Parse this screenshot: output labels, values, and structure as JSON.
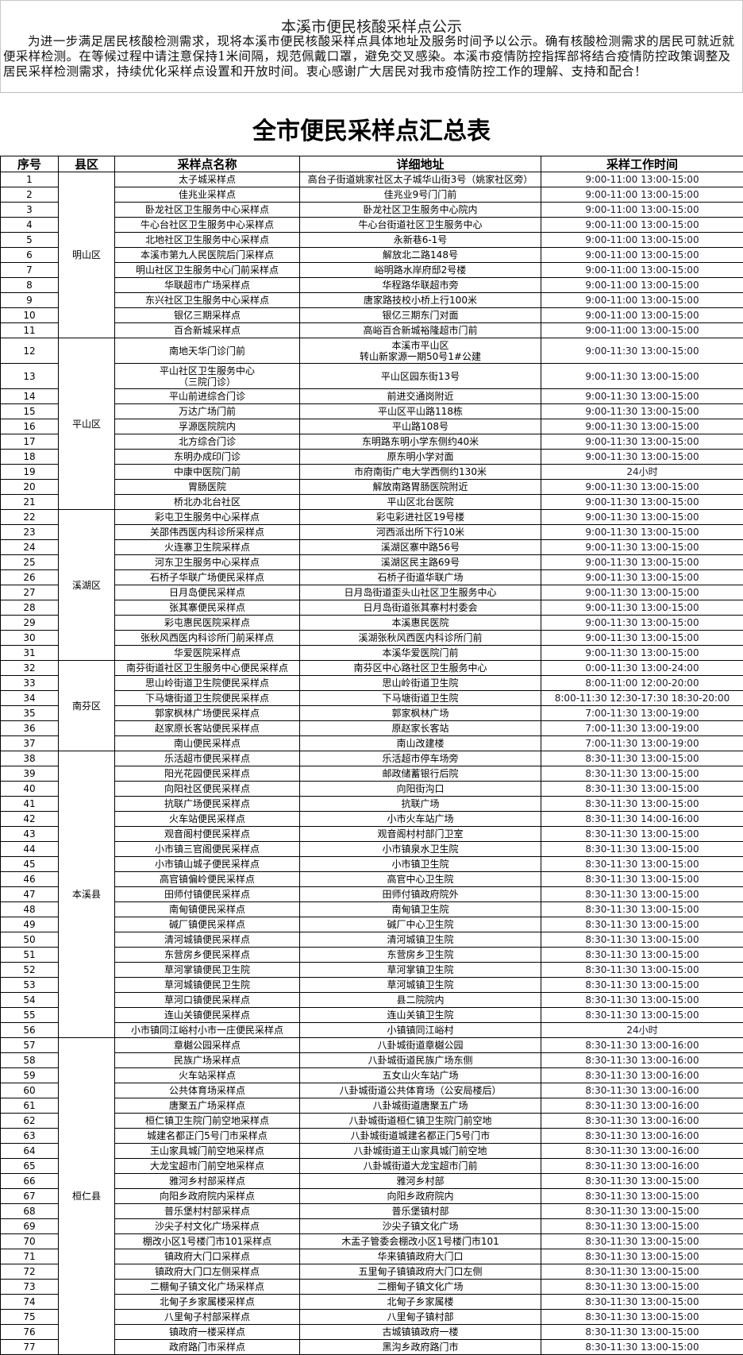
{
  "notice": {
    "title": "本溪市便民核酸采样点公示",
    "body": "为进一步满足居民核酸检测需求，现将本溪市便民核酸采样点具体地址及服务时间予以公示。确有核酸检测需求的居民可就近就便采样检测。在等候过程中请注意保持1米间隔，规范佩戴口罩，避免交叉感染。本溪市疫情防控指挥部将结合疫情防控政策调整及居民采样检测需求，持续优化采样点设置和开放时间。衷心感谢广大居民对我市疫情防控工作的理解、支持和配合！"
  },
  "table": {
    "title": "全市便民采样点汇总表",
    "headers": [
      "序号",
      "县区",
      "采样点名称",
      "详细地址",
      "采样工作时间"
    ],
    "districts": [
      {
        "name": "明山区",
        "rows": [
          [
            "1",
            "太子城采样点",
            "高台子街道姚家社区太子城华山街3号（姚家社区旁）",
            "9:00-11:00  13:00-15:00"
          ],
          [
            "2",
            "佳兆业采样点",
            "佳兆业9号门门前",
            "9:00-11:00  13:00-15:00"
          ],
          [
            "3",
            "卧龙社区卫生服务中心采样点",
            "卧龙社区卫生服务中心院内",
            "9:00-11:00  13:00-15:00"
          ],
          [
            "4",
            "牛心台社区卫生服务中心采样点",
            "牛心台街道社区卫生服务中心",
            "9:00-11:00  13:00-15:00"
          ],
          [
            "5",
            "北地社区卫生服务中心采样点",
            "永新巷6-1号",
            "9:00-11:00  13:00-15:00"
          ],
          [
            "6",
            "本溪市第九人民医院后门采样点",
            "解放北二路148号",
            "9:00-11:00  13:00-15:00"
          ],
          [
            "7",
            "明山社区卫生服务中心门前采样点",
            "峪明路水岸府邸2号楼",
            "9:00-11:00  13:00-15:00"
          ],
          [
            "8",
            "华联超市广场采样点",
            "华程路华联超市旁",
            "9:00-11:00  13:00-15:00"
          ],
          [
            "9",
            "东兴社区卫生服务中心采样点",
            "唐家路技校小桥上行100米",
            "9:00-11:00  13:00-15:00"
          ],
          [
            "10",
            "银亿三期采样点",
            "银亿三期东门对面",
            "9:00-11:00  13:00-15:00"
          ],
          [
            "11",
            "百合新城采样点",
            "高峪百合新城裕隆超市门前",
            "9:00-11:00  13:00-15:00"
          ]
        ]
      },
      {
        "name": "平山区",
        "rows": [
          [
            "12",
            "南地天华门诊门前",
            "本溪市平山区\n转山新家源一期50号1#公建",
            "9:00-11:30  13:00-15:00"
          ],
          [
            "13",
            "平山社区卫生服务中心\n（三院门诊）",
            "平山区园东街13号",
            "9:00-11:30  13:00-15:00"
          ],
          [
            "14",
            "平山前进综合门诊",
            "前进交通岗附近",
            "9:00-11:30  13:00-15:00"
          ],
          [
            "15",
            "万达广场门前",
            "平山区平山路118栋",
            "9:00-11:30  13:00-15:00"
          ],
          [
            "16",
            "孚源医院院内",
            "平山路108号",
            "9:00-11:30  13:00-15:00"
          ],
          [
            "17",
            "北方综合门诊",
            "东明路东明小学东侧约40米",
            "9:00-11:30  13:00-15:00"
          ],
          [
            "18",
            "东明办成印门诊",
            "原东明小学对面",
            "9:00-11:30  13:00-15:00"
          ],
          [
            "19",
            "中康中医院门前",
            "市府南街广电大学西侧约130米",
            "24小时"
          ],
          [
            "20",
            "胃肠医院",
            "解放南路胃肠医院附近",
            "9:00-11:30  13:00-15:00"
          ],
          [
            "21",
            "桥北办北台社区",
            "平山区北台医院",
            "9:00-11:30  13:00-15:00"
          ]
        ]
      },
      {
        "name": "溪湖区",
        "rows": [
          [
            "22",
            "彩屯卫生服务中心采样点",
            "彩屯彩进社区19号楼",
            "9:00-11:30  13:00-15:00"
          ],
          [
            "23",
            "关邵伟西医内科诊所采样点",
            "河西派出所下行10米",
            "9:00-11:30  13:00-15:00"
          ],
          [
            "24",
            "火连寨卫生院采样点",
            "溪湖区寨中路56号",
            "9:00-11:30  13:00-15:00"
          ],
          [
            "25",
            "河东卫生服务中心采样点",
            "溪湖区民主路69号",
            "9:00-11:30  13:00-15:00"
          ],
          [
            "26",
            "石桥子华联广场便民采样点",
            "石桥子街道华联广场",
            "9:00-11:30  13:00-15:00"
          ],
          [
            "27",
            "日月岛便民采样点",
            "日月岛街道歪头山社区卫生服务中心",
            "9:00-11:30  13:00-15:00"
          ],
          [
            "28",
            "张其寨便民采样点",
            "日月岛街道张其寨村村委会",
            "9:00-11:30  13:00-15:00"
          ],
          [
            "29",
            "彩屯惠民医院采样点",
            "本溪惠民医院",
            "9:00-11:30  13:00-15:00"
          ],
          [
            "30",
            "张秋风西医内科诊所门前采样点",
            "溪湖张秋风西医内科诊所门前",
            "9:00-11:30  13:00-15:00"
          ],
          [
            "31",
            "华爱医院采样点",
            "本溪华爱医院门前",
            "9:00-11:30  13:00-15:00"
          ]
        ]
      },
      {
        "name": "南芬区",
        "rows": [
          [
            "32",
            "南芬街道社区卫生服务中心便民采样点",
            "南芬区中心路社区卫生服务中心",
            "0:00-11:30  13:00-24:00"
          ],
          [
            "33",
            "思山岭街道卫生院便民采样点",
            "思山岭街道卫生院",
            "8:00-11:00  12:00-20:00"
          ],
          [
            "34",
            "下马塘街道卫生院便民采样点",
            "下马塘街道卫生院",
            "8:00-11:30    12:30-17:30    18:30-20:00"
          ],
          [
            "35",
            "郭家枫林广场便民采样点",
            "郭家枫林广场",
            "7:00-11:30  13:00-19:00"
          ],
          [
            "36",
            "赵家原长客站便民采样点",
            "原赵家长客站",
            "7:00-11:30  13:00-19:00"
          ],
          [
            "37",
            "南山便民采样点",
            "南山改建楼",
            "7:00-11:30  13:00-19:00"
          ]
        ]
      },
      {
        "name": "本溪县",
        "rows": [
          [
            "38",
            "乐活超市便民采样点",
            "乐活超市停车场旁",
            "8:30-11:30  13:00-15:00"
          ],
          [
            "39",
            "阳光花园便民采样点",
            "邮政储蓄银行后院",
            "8:30-11:30  13:00-15:00"
          ],
          [
            "40",
            "向阳社区便民采样点",
            "向阳街沟口",
            "8:30-11:30  13:00-15:00"
          ],
          [
            "41",
            "抗联广场便民采样点",
            "抗联广场",
            "8:30-11:30  13:00-15:00"
          ],
          [
            "42",
            "火车站便民采样点",
            "小市火车站广场",
            "8:30-11:30  14:00-16:00"
          ],
          [
            "43",
            "观音阁村便民采样点",
            "观音阁村村部门卫室",
            "8:30-11:30  13:00-15:00"
          ],
          [
            "44",
            "小市镇三官阁便民采样点",
            "小市镇泉水卫生院",
            "8:30-11:30  13:00-15:00"
          ],
          [
            "45",
            "小市镇山城子便民采样点",
            "小市镇卫生院",
            "8:30-11:30  13:00-15:00"
          ],
          [
            "46",
            "高官镇偏岭便民采样点",
            "高官中心卫生院",
            "8:30-11:30  13:00-15:00"
          ],
          [
            "47",
            "田师付镇便民采样点",
            "田师付镇政府院外",
            "8:30-11:30  13:00-15:00"
          ],
          [
            "48",
            "南甸镇便民采样点",
            "南甸镇卫生院",
            "8:30-11:30  13:00-15:00"
          ],
          [
            "49",
            "碱厂镇便民采样点",
            "碱厂中心卫生院",
            "8:30-11:30  13:00-15:00"
          ],
          [
            "50",
            "清河城镇便民采样点",
            "清河城镇卫生院",
            "8:30-11:30  13:00-15:00"
          ],
          [
            "51",
            "东营房乡便民采样点",
            "东营房乡卫生院",
            "8:30-11:30  13:00-15:00"
          ],
          [
            "52",
            "草河掌镇便民卫生院",
            "草河掌镇卫生院",
            "8:30-11:30  13:00-15:00"
          ],
          [
            "53",
            "草河城镇便民卫生院",
            "草河城镇卫生院",
            "8:30-11:30  13:00-15:00"
          ],
          [
            "54",
            "草河口镇便民采样点",
            "县二院院内",
            "8:30-11:30  13:00-15:00"
          ],
          [
            "55",
            "连山关镇便民采样点",
            "连山关镇卫生院",
            "8:30-11:30  13:00-15:00"
          ],
          [
            "56",
            "小市镇同江峪村小市一庄便民采样点",
            "小镇镇同江峪村",
            "24小时"
          ]
        ]
      },
      {
        "name": "桓仁县",
        "rows": [
          [
            "57",
            "章樾公园采样点",
            "八卦城街道章樾公园",
            "8:30-11:30  13:00-16:00"
          ],
          [
            "58",
            "民族广场采样点",
            "八卦城街道民族广场东侧",
            "8:30-11:30  13:00-16:00"
          ],
          [
            "59",
            "火车站采样点",
            "五女山火车站广场",
            "8:30-11:30  13:00-16:00"
          ],
          [
            "60",
            "公共体育场采样点",
            "八卦城街道公共体育场（公安局楼后）",
            "8:30-11:30  13:00-16:00"
          ],
          [
            "61",
            "唐聚五广场采样点",
            "八卦城街道唐聚五广场",
            "8:30-11:30  13:00-16:00"
          ],
          [
            "62",
            "桓仁镇卫生院门前空地采样点",
            "八卦城街道桓仁镇卫生院门前空地",
            "8:30-11:30  13:00-16:00"
          ],
          [
            "63",
            "城建名都正门5号门市采样点",
            "八卦城街道城建名都正门5号门市",
            "8:30-11:30  13:00-16:00"
          ],
          [
            "64",
            "王山家具城门前空地采样点",
            "八卦城街道王山家具城门前空地",
            "8:30-11:30  13:00-16:00"
          ],
          [
            "65",
            "大龙宝超市门前空地采样点",
            "八卦城街道大龙宝超市门前",
            "8:30-11:30  13:00-16:00"
          ],
          [
            "66",
            "雅河乡村部采样点",
            "雅河乡村部",
            "8:30-11:30  13:00-15:00"
          ],
          [
            "67",
            "向阳乡政府院内采样点",
            "向阳乡政府院内",
            "8:30-11:30  13:00-15:00"
          ],
          [
            "68",
            "普乐堡村村部采样点",
            "普乐堡镇村部",
            "8:30-11:30  13:00-15:00"
          ],
          [
            "69",
            "沙尖子村文化广场采样点",
            "沙尖子镇文化广场",
            "8:30-11:30  13:00-15:00"
          ],
          [
            "70",
            "棚改小区1号楼门市101采样点",
            "木盂子管委会棚改小区1号楼门市101",
            "8:30-11:30  13:00-15:00"
          ],
          [
            "71",
            "镇政府大门口采样点",
            "华来镇镇政府大门口",
            "8:30-11:30  13:00-15:00"
          ],
          [
            "72",
            "镇政府大门口左侧采样点",
            "五里甸子镇镇政府大门口左侧",
            "8:30-11:30  13:00-15:00"
          ],
          [
            "73",
            "二棚甸子镇文化广场采样点",
            "二棚甸子镇文化广场",
            "8:30-11:30  13:00-15:00"
          ],
          [
            "74",
            "北甸子乡家属楼采样点",
            "北甸子乡家属楼",
            "8:30-11:30  13:00-15:00"
          ],
          [
            "75",
            "八里甸子村部采样点",
            "八里甸子镇村部",
            "8:30-11:30  13:00-15:00"
          ],
          [
            "76",
            "镇政府一楼采样点",
            "古城镇镇政府一楼",
            "8:30-11:30  13:00-15:00"
          ],
          [
            "77",
            "政府路门市采样点",
            "黑沟乡政府路门市",
            "8:30-11:30  13:00-15:00"
          ]
        ]
      }
    ]
  }
}
